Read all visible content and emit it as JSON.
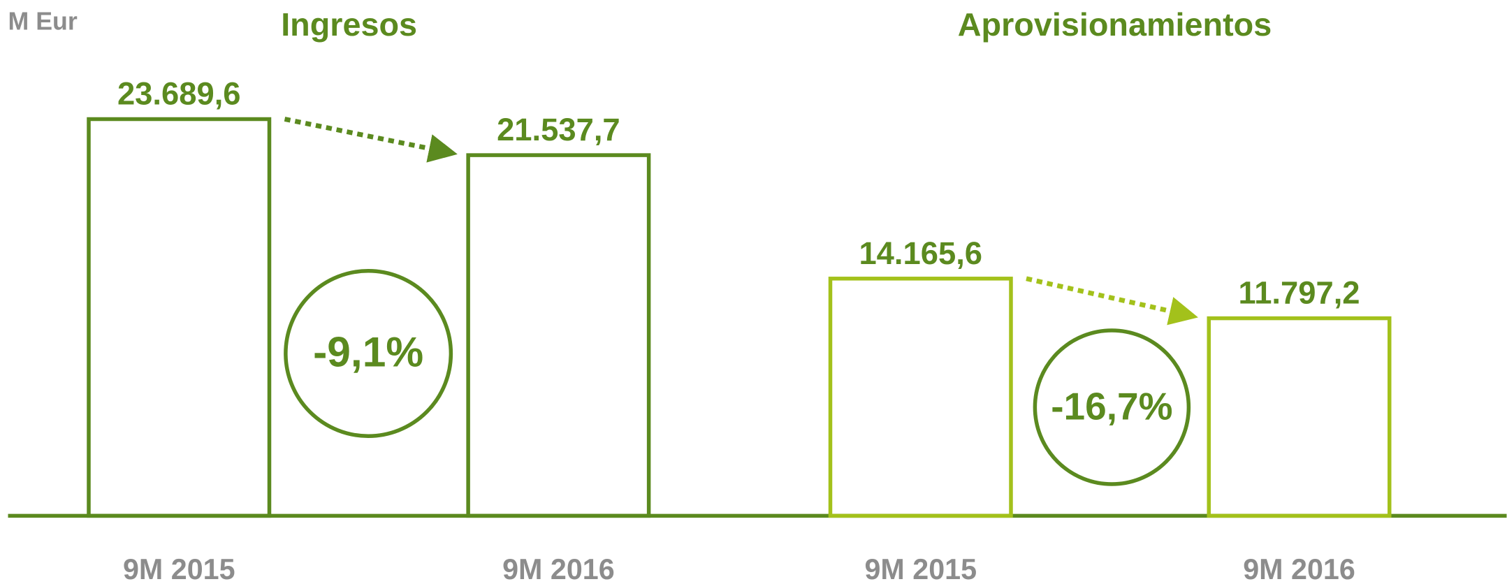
{
  "unit": "M Eur",
  "chart_data": [
    {
      "type": "bar",
      "title": "Ingresos",
      "categories": [
        "9M 2015",
        "9M 2016"
      ],
      "values": [
        23689.6,
        21537.7
      ],
      "value_labels": [
        "23.689,6",
        "21.537,7"
      ],
      "color": "#5b8a1f",
      "change": "-9,1%",
      "ylim": [
        0,
        30000
      ]
    },
    {
      "type": "bar",
      "title": "Aprovisionamientos",
      "categories": [
        "9M 2015",
        "9M 2016"
      ],
      "values": [
        14165.6,
        11797.2
      ],
      "value_labels": [
        "14.165,6",
        "11.797,2"
      ],
      "color": "#a3c11b",
      "change": "-16,7%",
      "ylim": [
        0,
        30000
      ]
    }
  ]
}
